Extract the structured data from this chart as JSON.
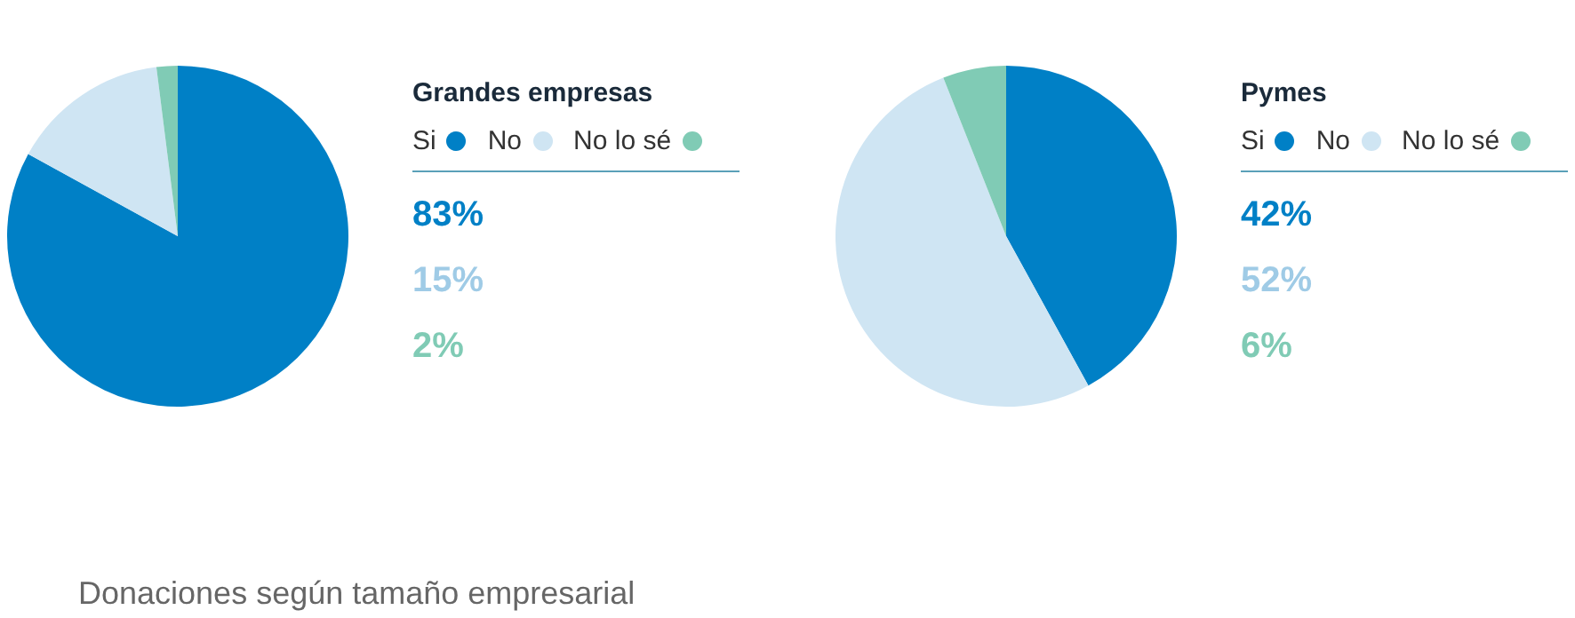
{
  "chart_data": [
    {
      "type": "pie",
      "title": "Grandes empresas",
      "categories": [
        "Si",
        "No",
        "No lo sé"
      ],
      "values": [
        83,
        15,
        2
      ],
      "colors": [
        "#0080c6",
        "#cfe5f3",
        "#80cbb5"
      ],
      "legend": "right",
      "annotations": [
        "83%",
        "15%",
        "2%",
        "Donaciones según tamaño empresarial"
      ]
    },
    {
      "type": "pie",
      "title": "Pymes",
      "categories": [
        "Si",
        "No",
        "No lo sé"
      ],
      "values": [
        42,
        52,
        6
      ],
      "colors": [
        "#0080c6",
        "#cfe5f3",
        "#80cbb5"
      ],
      "legend": "right",
      "annotations": [
        "42%",
        "52%",
        "6%"
      ]
    }
  ]
}
